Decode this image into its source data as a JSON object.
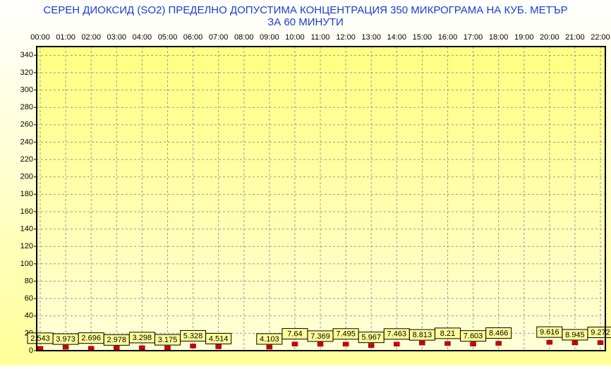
{
  "chart_data": {
    "type": "scatter",
    "title": "СЕРЕН ДИОКСИД  (SO2)  ПРЕДЕЛНО ДОПУСТИМА КОНЦЕНТРАЦИЯ 350 МИКРОГРАМА  НА КУБ. МЕТЪР",
    "subtitle": "ЗА 60 МИНУТИ",
    "categories": [
      "00:00",
      "01:00",
      "02:00",
      "03:00",
      "04:00",
      "05:00",
      "06:00",
      "07:00",
      "08:00",
      "09:00",
      "10:00",
      "11:00",
      "12:00",
      "13:00",
      "14:00",
      "15:00",
      "16:00",
      "17:00",
      "18:00",
      "19:00",
      "20:00",
      "21:00",
      "22:00"
    ],
    "values": [
      2.543,
      3.973,
      2.696,
      2.978,
      3.298,
      3.175,
      5.328,
      4.514,
      null,
      4.103,
      7.64,
      7.369,
      7.495,
      5.967,
      7.463,
      8.813,
      8.21,
      7.603,
      8.466,
      null,
      9.616,
      8.945,
      9.272
    ],
    "color": "#cc0000",
    "ylim": [
      0,
      350
    ],
    "yticks": [
      0,
      20,
      40,
      60,
      80,
      100,
      120,
      140,
      160,
      180,
      200,
      220,
      240,
      260,
      280,
      300,
      320,
      340
    ],
    "grid": true
  }
}
